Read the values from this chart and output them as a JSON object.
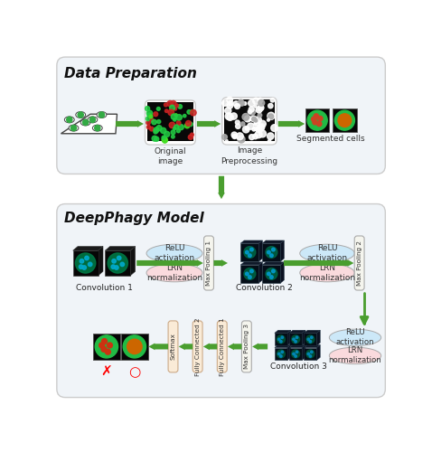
{
  "title_data_prep": "Data Preparation",
  "title_deepphagy": "DeepPhagy Model",
  "arrow_color": "#4a9e2f",
  "relu_color": "#cce8f8",
  "lrn_color": "#fadadd",
  "maxpool_color": "#f5f5ee",
  "fc_color": "#faebd7",
  "label_orig_image": "Original\nimage",
  "label_preprocess": "Image\nPreprocessing",
  "label_seg_cells": "Segmented cells",
  "label_conv1": "Convolution 1",
  "label_conv2": "Convolution 2",
  "label_conv3": "Convolution 3",
  "label_relu": "ReLU\nactivation",
  "label_lrn": "LRN\nnormalization",
  "label_mp1": "Max Pooling 1",
  "label_mp2": "Max Pooling 2",
  "label_mp3": "Max Pooling 3",
  "label_fc1": "Fully Connected 1",
  "label_fc2": "Fully Connected 2",
  "label_softmax": "Softmax"
}
